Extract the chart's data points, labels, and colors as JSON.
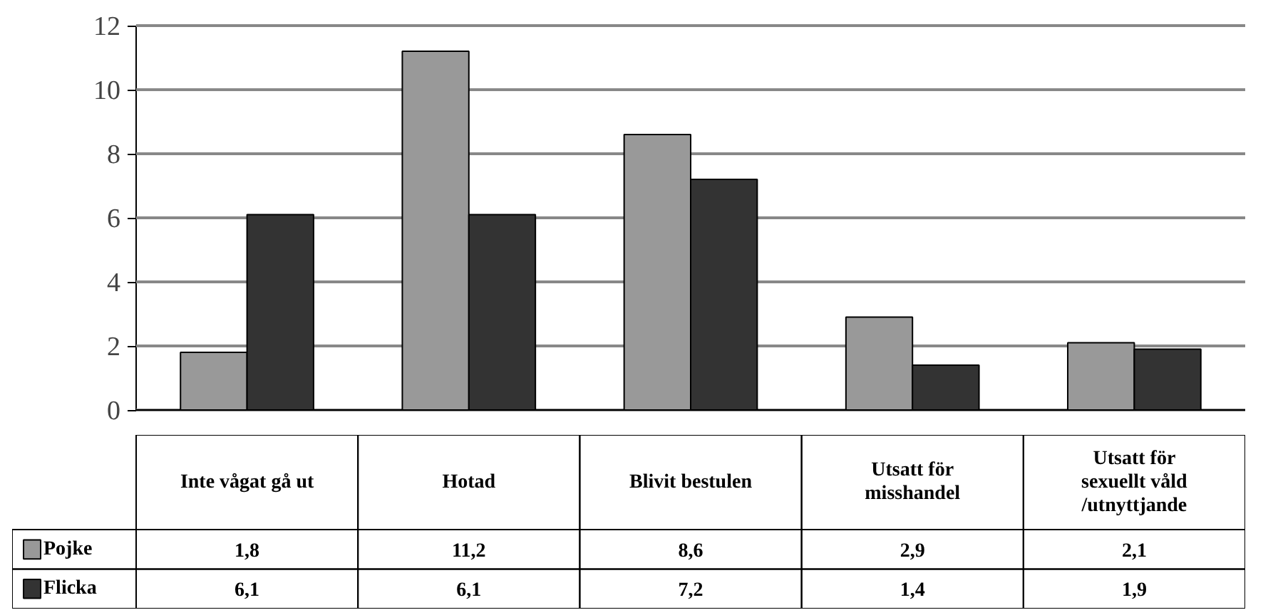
{
  "chart_data": {
    "type": "bar",
    "categories": [
      "Inte vågat gå ut",
      "Hotad",
      "Blivit bestulen",
      "Utsatt för misshandel",
      "Utsatt för sexuellt våld /utnyttjande"
    ],
    "series": [
      {
        "name": "Pojke",
        "color": "#999999",
        "values": [
          1.8,
          11.2,
          8.6,
          2.9,
          2.1
        ],
        "value_labels": [
          "1,8",
          "11,2",
          "8,6",
          "2,9",
          "2,1"
        ]
      },
      {
        "name": "Flicka",
        "color": "#333333",
        "values": [
          6.1,
          6.1,
          7.2,
          1.4,
          1.9
        ],
        "value_labels": [
          "6,1",
          "6,1",
          "7,2",
          "1,4",
          "1,9"
        ]
      }
    ],
    "ylim": [
      0,
      12
    ],
    "yticks": [
      0,
      2,
      4,
      6,
      8,
      10,
      12
    ],
    "grid": "y",
    "legend": "bottom left",
    "tick_labels": "y"
  }
}
